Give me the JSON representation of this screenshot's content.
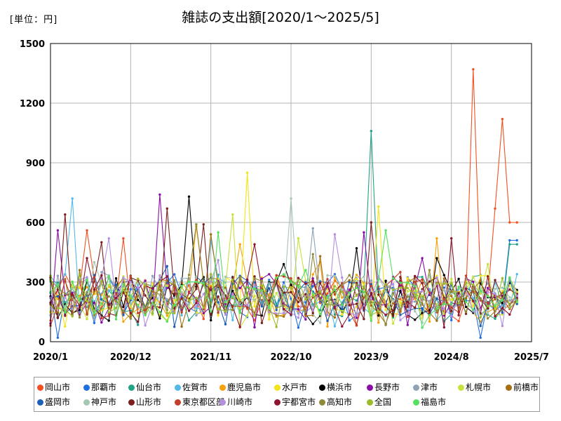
{
  "chart_data": {
    "type": "line",
    "title": "雑誌の支出額[2020/1～2025/5]",
    "unit_label": "[単位：円]",
    "ylim": [
      0,
      1500
    ],
    "y_ticks": [
      "0",
      "300",
      "600",
      "900",
      "1200",
      "1500"
    ],
    "x_tick_labels": [
      "2020/1",
      "2020/12",
      "2021/11",
      "2022/10",
      "2023/9",
      "2024/8",
      "2025/7"
    ],
    "x_start": "2020/1",
    "months": 65,
    "grid": true,
    "legend_position": "bottom",
    "series": [
      {
        "name": "岡山市",
        "color": "#f25022",
        "peaks": [
          [
            5,
            560
          ],
          [
            10,
            520
          ],
          [
            58,
            1370
          ],
          [
            61,
            670
          ],
          [
            62,
            1120
          ],
          [
            63,
            600
          ]
        ],
        "last": 600
      },
      {
        "name": "那覇市",
        "color": "#1f6fe0",
        "peaks": [
          [
            1,
            20
          ],
          [
            40,
            260
          ],
          [
            59,
            20
          ],
          [
            63,
            510
          ]
        ],
        "last": 510
      },
      {
        "name": "仙台市",
        "color": "#20a386",
        "peaks": [
          [
            44,
            1060
          ],
          [
            63,
            490
          ]
        ],
        "last": 490
      },
      {
        "name": "佐賀市",
        "color": "#54b9e8",
        "peaks": [
          [
            3,
            720
          ],
          [
            16,
            330
          ],
          [
            22,
            510
          ]
        ],
        "last": 340
      },
      {
        "name": "鹿児島市",
        "color": "#f5a20c",
        "peaks": [
          [
            20,
            580
          ],
          [
            26,
            490
          ],
          [
            37,
            400
          ],
          [
            53,
            520
          ]
        ],
        "last": 240
      },
      {
        "name": "水戸市",
        "color": "#f2e418",
        "peaks": [
          [
            27,
            850
          ],
          [
            45,
            680
          ],
          [
            49,
            320
          ]
        ],
        "last": 200
      },
      {
        "name": "横浜市",
        "color": "#000000",
        "peaks": [
          [
            1,
            120
          ],
          [
            19,
            730
          ],
          [
            32,
            390
          ],
          [
            42,
            470
          ],
          [
            53,
            420
          ]
        ],
        "last": 260
      },
      {
        "name": "長野市",
        "color": "#8a0ea6",
        "peaks": [
          [
            1,
            560
          ],
          [
            15,
            740
          ],
          [
            43,
            550
          ],
          [
            51,
            420
          ]
        ],
        "last": 230
      },
      {
        "name": "津市",
        "color": "#8fa3b4",
        "peaks": [
          [
            7,
            350
          ],
          [
            36,
            570
          ],
          [
            47,
            290
          ]
        ],
        "last": 220
      },
      {
        "name": "札幌市",
        "color": "#c7e23a",
        "peaks": [
          [
            25,
            640
          ],
          [
            34,
            520
          ],
          [
            60,
            390
          ]
        ],
        "last": 250
      },
      {
        "name": "前橋市",
        "color": "#a57012",
        "peaks": [
          [
            4,
            360
          ],
          [
            22,
            540
          ],
          [
            37,
            430
          ]
        ],
        "last": 210
      },
      {
        "name": "盛岡市",
        "color": "#1d5fb6",
        "peaks": [
          [
            16,
            380
          ],
          [
            41,
            300
          ]
        ],
        "last": 190
      },
      {
        "name": "神戸市",
        "color": "#a7c6b2",
        "peaks": [
          [
            6,
            400
          ],
          [
            33,
            720
          ],
          [
            45,
            330
          ]
        ],
        "last": 200
      },
      {
        "name": "山形市",
        "color": "#7b1f1f",
        "peaks": [
          [
            2,
            640
          ],
          [
            7,
            500
          ],
          [
            16,
            670
          ],
          [
            21,
            590
          ],
          [
            44,
            600
          ]
        ],
        "last": 240
      },
      {
        "name": "東京都区部",
        "color": "#c2402a",
        "peaks": [
          [
            11,
            330
          ],
          [
            29,
            280
          ],
          [
            48,
            350
          ]
        ],
        "last": 210
      },
      {
        "name": "川崎市",
        "color": "#b48fe0",
        "peaks": [
          [
            8,
            520
          ],
          [
            23,
            410
          ],
          [
            39,
            540
          ]
        ],
        "last": 230
      },
      {
        "name": "宇都宮市",
        "color": "#8e1530",
        "peaks": [
          [
            5,
            420
          ],
          [
            28,
            490
          ],
          [
            50,
            330
          ],
          [
            55,
            520
          ]
        ],
        "last": 220
      },
      {
        "name": "高知市",
        "color": "#8d8a3a",
        "peaks": [
          [
            20,
            590
          ],
          [
            36,
            440
          ],
          [
            52,
            360
          ]
        ],
        "last": 210
      },
      {
        "name": "全国",
        "color": "#9bbc28",
        "peaks": [
          [
            10,
            260
          ],
          [
            40,
            250
          ]
        ],
        "last": 200
      },
      {
        "name": "福島市",
        "color": "#55e060",
        "peaks": [
          [
            23,
            550
          ],
          [
            35,
            360
          ],
          [
            46,
            560
          ]
        ],
        "last": 200
      }
    ]
  }
}
